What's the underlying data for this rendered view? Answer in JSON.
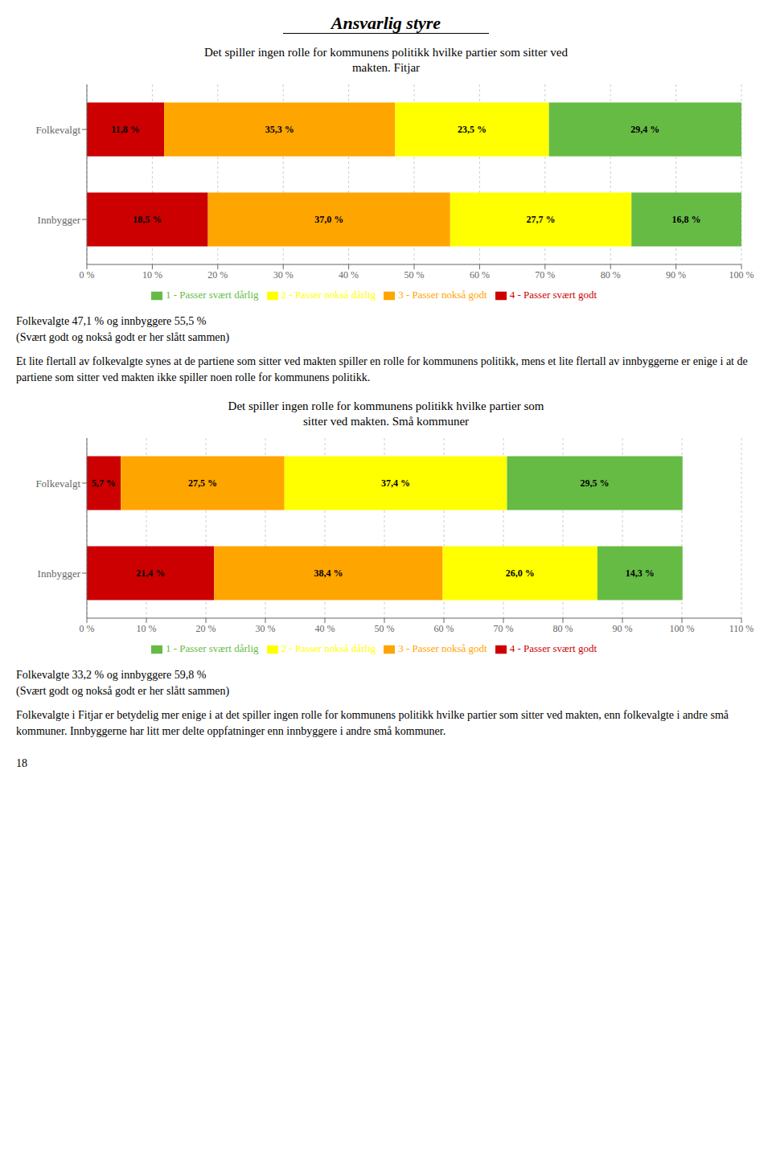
{
  "title": "Ansvarlig styre",
  "annotations": [
    "18"
  ],
  "chart_data": [
    {
      "type": "bar",
      "orientation": "horizontal",
      "stacked": true,
      "data_labels": true,
      "grid": true,
      "legend": "bottom",
      "title": "Det spiller ingen rolle for kommunens politikk hvilke partier som sitter ved\nmakten. Fitjar",
      "categories": [
        "Folkevalgt",
        "Innbygger"
      ],
      "series": [
        {
          "name": "4 - Passer svært godt",
          "color": "#CC0000",
          "values": [
            11.8,
            18.5
          ],
          "value_labels": [
            "11,8 %",
            "18,5 %"
          ]
        },
        {
          "name": "3 - Passer nokså godt",
          "color": "#FFA500",
          "values": [
            35.3,
            37.0
          ],
          "value_labels": [
            "35,3 %",
            "37,0 %"
          ]
        },
        {
          "name": "2 - Passer nokså dårlig",
          "color": "#FFFF00",
          "values": [
            23.5,
            27.7
          ],
          "value_labels": [
            "23,5 %",
            "27,7 %"
          ]
        },
        {
          "name": "1 - Passer svært dårlig",
          "color": "#66BB44",
          "values": [
            29.4,
            16.8
          ],
          "value_labels": [
            "29,4 %",
            "16,8 %"
          ]
        }
      ],
      "xlim": [
        0,
        100
      ],
      "xticks": [
        {
          "value": 0,
          "label": "0 %"
        },
        {
          "value": 10,
          "label": "10 %"
        },
        {
          "value": 20,
          "label": "20 %"
        },
        {
          "value": 30,
          "label": "30 %"
        },
        {
          "value": 40,
          "label": "40 %"
        },
        {
          "value": 50,
          "label": "50 %"
        },
        {
          "value": 60,
          "label": "60 %"
        },
        {
          "value": 70,
          "label": "70 %"
        },
        {
          "value": 80,
          "label": "80 %"
        },
        {
          "value": 90,
          "label": "90 %"
        },
        {
          "value": 100,
          "label": "100 %"
        }
      ],
      "annotations": [
        "Folkevalgte 47,1 % og innbyggere 55,5 %",
        "(Svært godt og nokså godt er her slått sammen)",
        "Et lite flertall av folkevalgte synes at de partiene som sitter ved makten spiller en rolle for kommunens politikk, mens et lite flertall av innbyggerne er enige i at de partiene som sitter ved makten ikke spiller noen rolle for kommunens politikk."
      ]
    },
    {
      "type": "bar",
      "orientation": "horizontal",
      "stacked": true,
      "data_labels": true,
      "grid": true,
      "legend": "bottom",
      "title": "Det spiller ingen rolle for kommunens politikk hvilke partier som\nsitter ved makten. Små kommuner",
      "categories": [
        "Folkevalgt",
        "Innbygger"
      ],
      "series": [
        {
          "name": "4 - Passer svært godt",
          "color": "#CC0000",
          "values": [
            5.7,
            21.4
          ],
          "value_labels": [
            "5,7 %",
            "21,4 %"
          ]
        },
        {
          "name": "3 - Passer nokså godt",
          "color": "#FFA500",
          "values": [
            27.5,
            38.4
          ],
          "value_labels": [
            "27,5 %",
            "38,4 %"
          ]
        },
        {
          "name": "2 - Passer nokså dårlig",
          "color": "#FFFF00",
          "values": [
            37.4,
            26.0
          ],
          "value_labels": [
            "37,4 %",
            "26,0 %"
          ]
        },
        {
          "name": "1 - Passer svært dårlig",
          "color": "#66BB44",
          "values": [
            29.5,
            14.3
          ],
          "value_labels": [
            "29,5 %",
            "14,3 %"
          ]
        }
      ],
      "xlim": [
        0,
        110
      ],
      "xticks": [
        {
          "value": 0,
          "label": "0 %"
        },
        {
          "value": 10,
          "label": "10 %"
        },
        {
          "value": 20,
          "label": "20 %"
        },
        {
          "value": 30,
          "label": "30 %"
        },
        {
          "value": 40,
          "label": "40 %"
        },
        {
          "value": 50,
          "label": "50 %"
        },
        {
          "value": 60,
          "label": "60 %"
        },
        {
          "value": 70,
          "label": "70 %"
        },
        {
          "value": 80,
          "label": "80 %"
        },
        {
          "value": 90,
          "label": "90 %"
        },
        {
          "value": 100,
          "label": "100 %"
        },
        {
          "value": 110,
          "label": "110 %"
        }
      ],
      "annotations": [
        "Folkevalgte 33,2 % og innbyggere 59,8 %",
        "(Svært godt og nokså godt er her slått sammen)",
        "Folkevalgte i Fitjar er betydelig mer enige i at det spiller ingen rolle for kommunens politikk hvilke partier som sitter ved makten, enn folkevalgte i andre små kommuner. Innbyggerne har litt mer delte oppfatninger enn innbyggere i andre små kommuner."
      ]
    }
  ]
}
